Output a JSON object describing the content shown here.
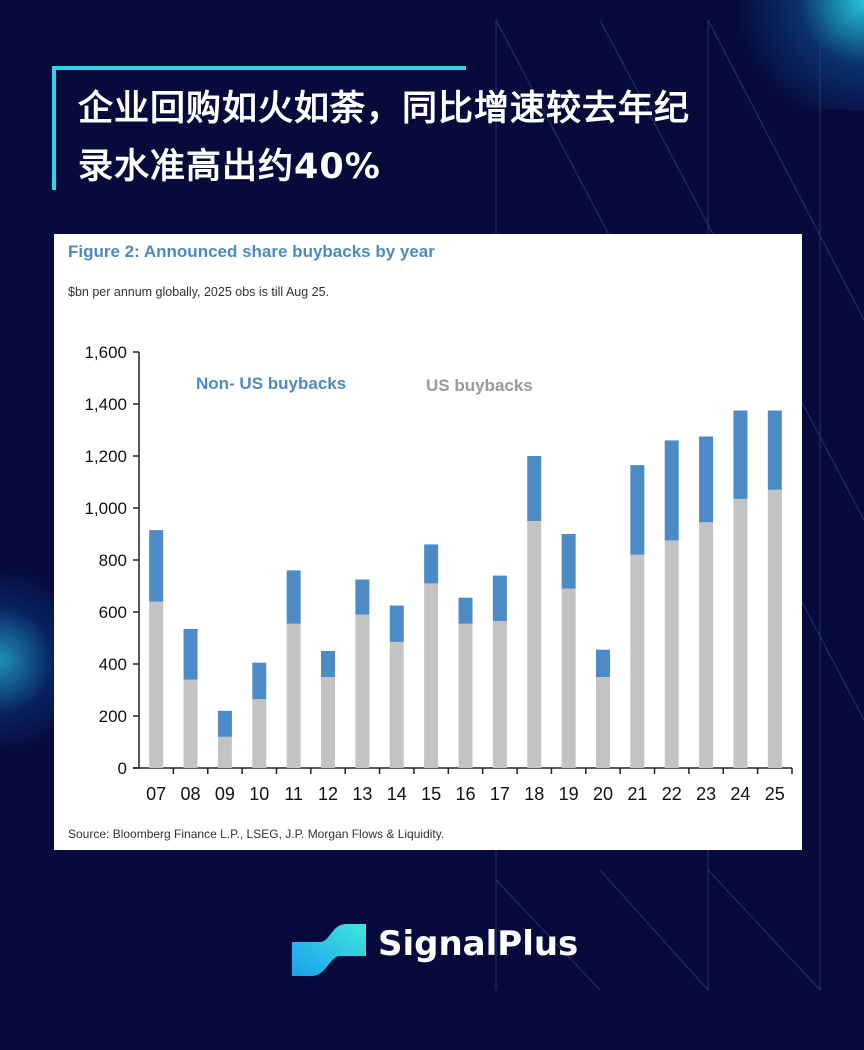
{
  "headline": {
    "line1": "企业回购如火如荼，同比增速较去年纪",
    "line2": "录水准高出约40%"
  },
  "brand": {
    "name": "SignalPlus"
  },
  "colors": {
    "background": "#060b3c",
    "accent": "#2fd3e6",
    "non_us": "#4d8bc6",
    "us": "#c3c3c3"
  },
  "chart_data": {
    "type": "bar",
    "stacked": true,
    "title": "Figure 2: Announced share buybacks by year",
    "subtitle": "$bn per annum globally, 2025 obs is till Aug 25.",
    "source": "Source: Bloomberg Finance L.P., LSEG, J.P. Morgan Flows & Liquidity.",
    "categories": [
      "07",
      "08",
      "09",
      "10",
      "11",
      "12",
      "13",
      "14",
      "15",
      "16",
      "17",
      "18",
      "19",
      "20",
      "21",
      "22",
      "23",
      "24",
      "25"
    ],
    "ylim": [
      0,
      1600
    ],
    "yticks": [
      "0",
      "200",
      "400",
      "600",
      "800",
      "1,000",
      "1,200",
      "1,400",
      "1,600"
    ],
    "grid": false,
    "series": [
      {
        "name": "US buybacks",
        "color": "#c3c3c3",
        "values": [
          640,
          340,
          120,
          265,
          555,
          350,
          590,
          485,
          710,
          555,
          565,
          950,
          690,
          350,
          820,
          875,
          945,
          1035,
          1070
        ]
      },
      {
        "name": "Non- US buybacks",
        "color": "#4d8bc6",
        "values": [
          275,
          195,
          100,
          140,
          205,
          100,
          135,
          140,
          150,
          100,
          175,
          250,
          210,
          105,
          345,
          385,
          330,
          340,
          305
        ]
      }
    ]
  }
}
